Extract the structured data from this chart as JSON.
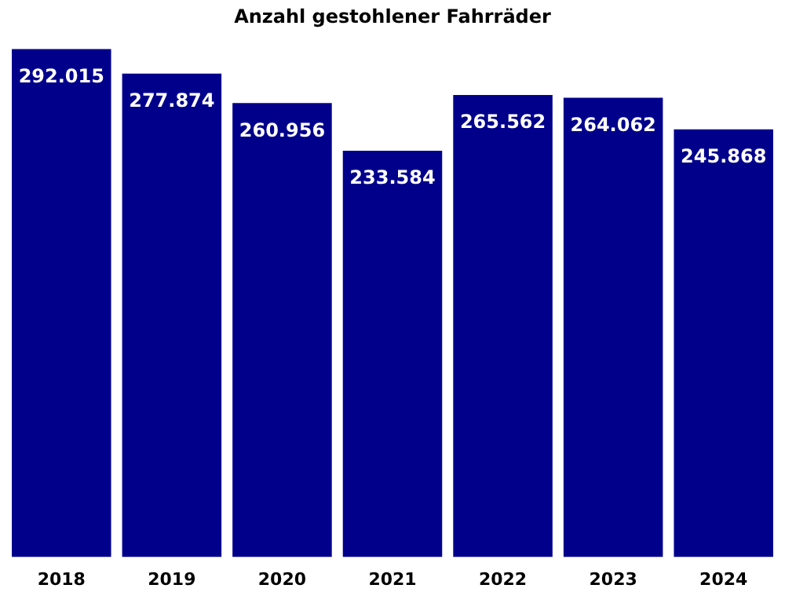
{
  "chart_data": {
    "type": "bar",
    "title": "Anzahl gestohlener Fahrräder",
    "categories": [
      "2018",
      "2019",
      "2020",
      "2021",
      "2022",
      "2023",
      "2024"
    ],
    "values": [
      292015,
      277874,
      260956,
      233584,
      265562,
      264062,
      245868
    ],
    "value_labels": [
      "292.015",
      "277.874",
      "260.956",
      "233.584",
      "265.562",
      "264.062",
      "245.868"
    ],
    "color": "#00008b",
    "grid": false,
    "legend": false
  }
}
